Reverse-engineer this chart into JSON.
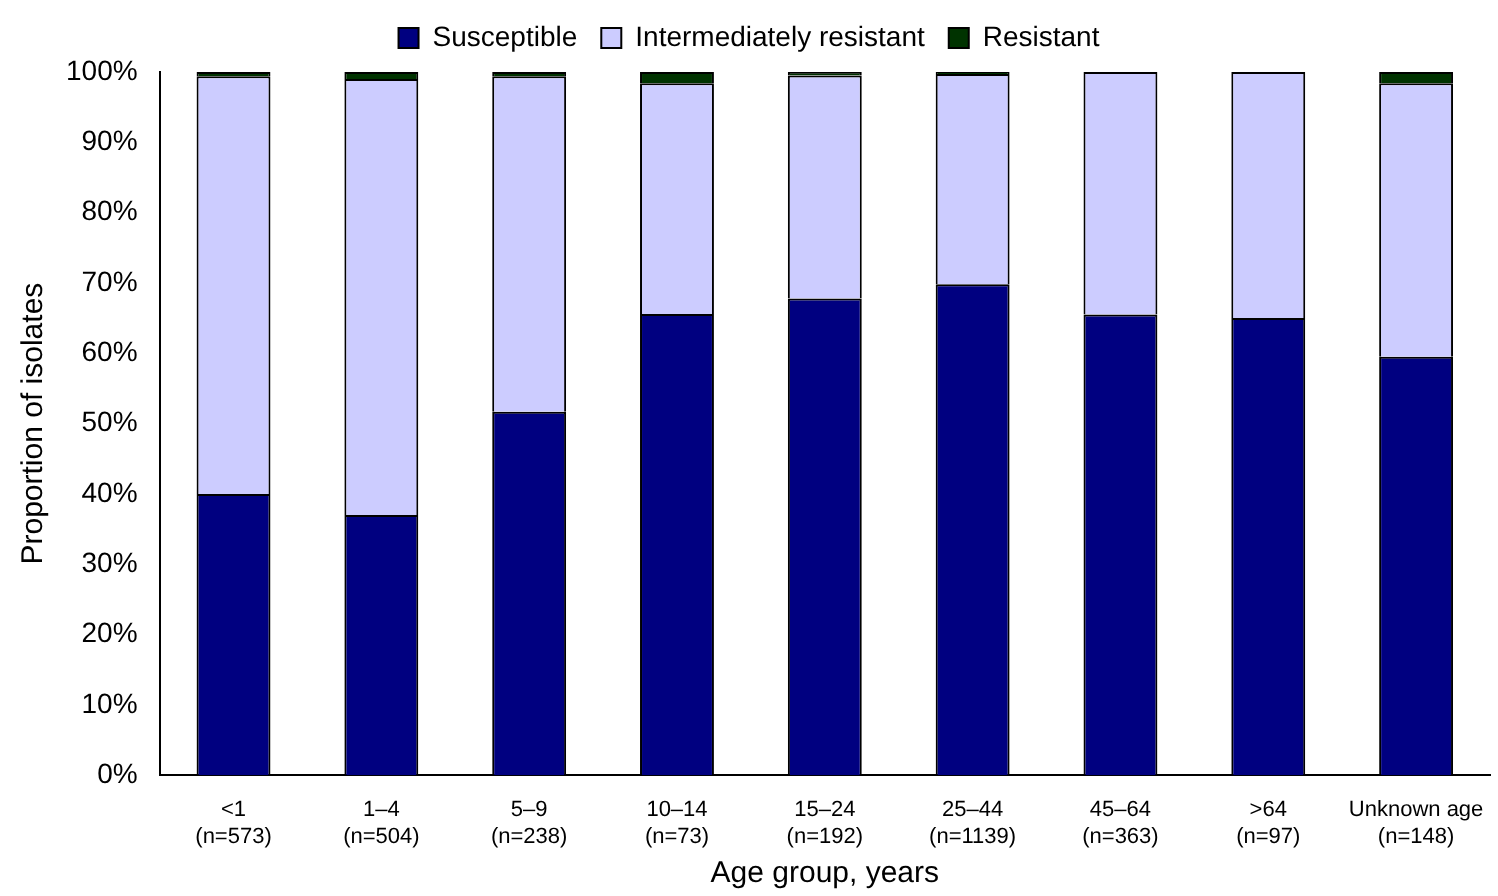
{
  "chart_data": {
    "type": "bar",
    "stacked": true,
    "xlabel": "Age group, years",
    "ylabel": "Proportion of isolates",
    "categories": [
      "<1 (n=573)",
      "1–4 (n=504)",
      "5–9 (n=238)",
      "10–14 (n=73)",
      "15–24 (n=192)",
      "25–44 (n=1139)",
      "45–64 (n=363)",
      ">64 (n=97)",
      "Unknown age (n=148)"
    ],
    "series": [
      {
        "name": "Susceptible",
        "color": "#000080",
        "values": [
          40,
          37,
          51.7,
          65.6,
          67.8,
          69.8,
          65.5,
          65,
          59.5
        ]
      },
      {
        "name": "Intermediately resistant",
        "color": "#ccccff",
        "values": [
          59.4,
          62,
          47.7,
          32.8,
          31.7,
          29.9,
          34.5,
          35,
          38.9
        ]
      },
      {
        "name": "Resistant",
        "color": "#003300",
        "values": [
          0.6,
          1,
          0.6,
          1.6,
          0.5,
          0.3,
          0,
          0,
          1.6
        ]
      }
    ],
    "ylim": [
      0,
      100
    ],
    "yticks": [
      {
        "value": 0,
        "label": "0%"
      },
      {
        "value": 10,
        "label": "10%"
      },
      {
        "value": 20,
        "label": "20%"
      },
      {
        "value": 30,
        "label": "30%"
      },
      {
        "value": 40,
        "label": "40%"
      },
      {
        "value": 50,
        "label": "50%"
      },
      {
        "value": 60,
        "label": "60%"
      },
      {
        "value": 70,
        "label": "70%"
      },
      {
        "value": 80,
        "label": "80%"
      },
      {
        "value": 90,
        "label": "90%"
      },
      {
        "value": 100,
        "label": "100%"
      }
    ],
    "grid": false,
    "legend": "top"
  }
}
